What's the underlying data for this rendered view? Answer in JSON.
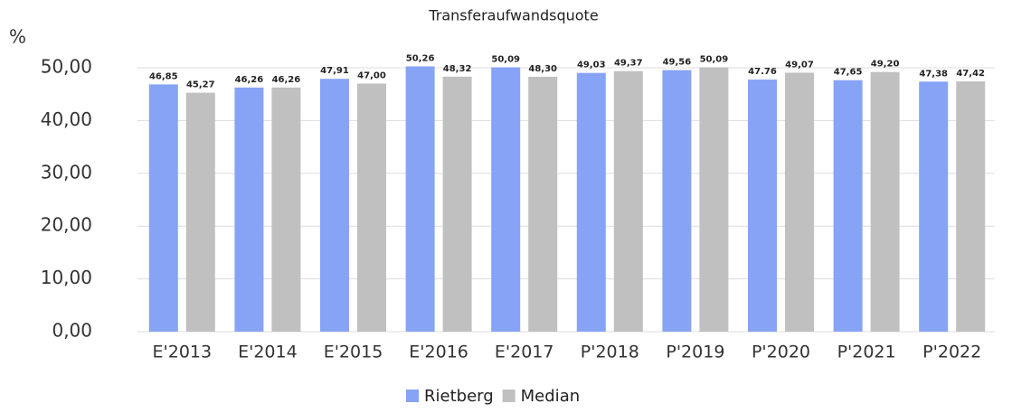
{
  "chart_data": {
    "type": "bar",
    "title": "Transferaufwandsquote",
    "y_axis_label": "%",
    "categories": [
      "E'2013",
      "E'2014",
      "E'2015",
      "E'2016",
      "E'2017",
      "P'2018",
      "P'2019",
      "P'2020",
      "P'2021",
      "P'2022"
    ],
    "series": [
      {
        "name": "Rietberg",
        "color": "#87a3f5",
        "values": [
          46.85,
          46.26,
          47.91,
          50.26,
          50.09,
          49.03,
          49.56,
          47.76,
          47.65,
          47.38
        ],
        "value_labels": [
          "46,85",
          "46,26",
          "47,91",
          "50,26",
          "50,09",
          "49,03",
          "49,56",
          "47.76",
          "47,65",
          "47,38"
        ]
      },
      {
        "name": "Median",
        "color": "#c0c0c0",
        "values": [
          45.27,
          46.26,
          47.0,
          48.32,
          48.3,
          49.37,
          50.09,
          49.07,
          49.2,
          47.42
        ],
        "value_labels": [
          "45,27",
          "46,26",
          "47,00",
          "48,32",
          "48,30",
          "49,37",
          "50,09",
          "49,07",
          "49,20",
          "47,42"
        ]
      }
    ],
    "ylim": [
      0,
      52
    ],
    "yticks": [
      {
        "value": 0,
        "label": "0,00"
      },
      {
        "value": 10,
        "label": "10,00"
      },
      {
        "value": 20,
        "label": "20,00"
      },
      {
        "value": 30,
        "label": "30,00"
      },
      {
        "value": 40,
        "label": "40,00"
      },
      {
        "value": 50,
        "label": "50,00"
      }
    ],
    "grid": true,
    "legend": "bottom"
  }
}
